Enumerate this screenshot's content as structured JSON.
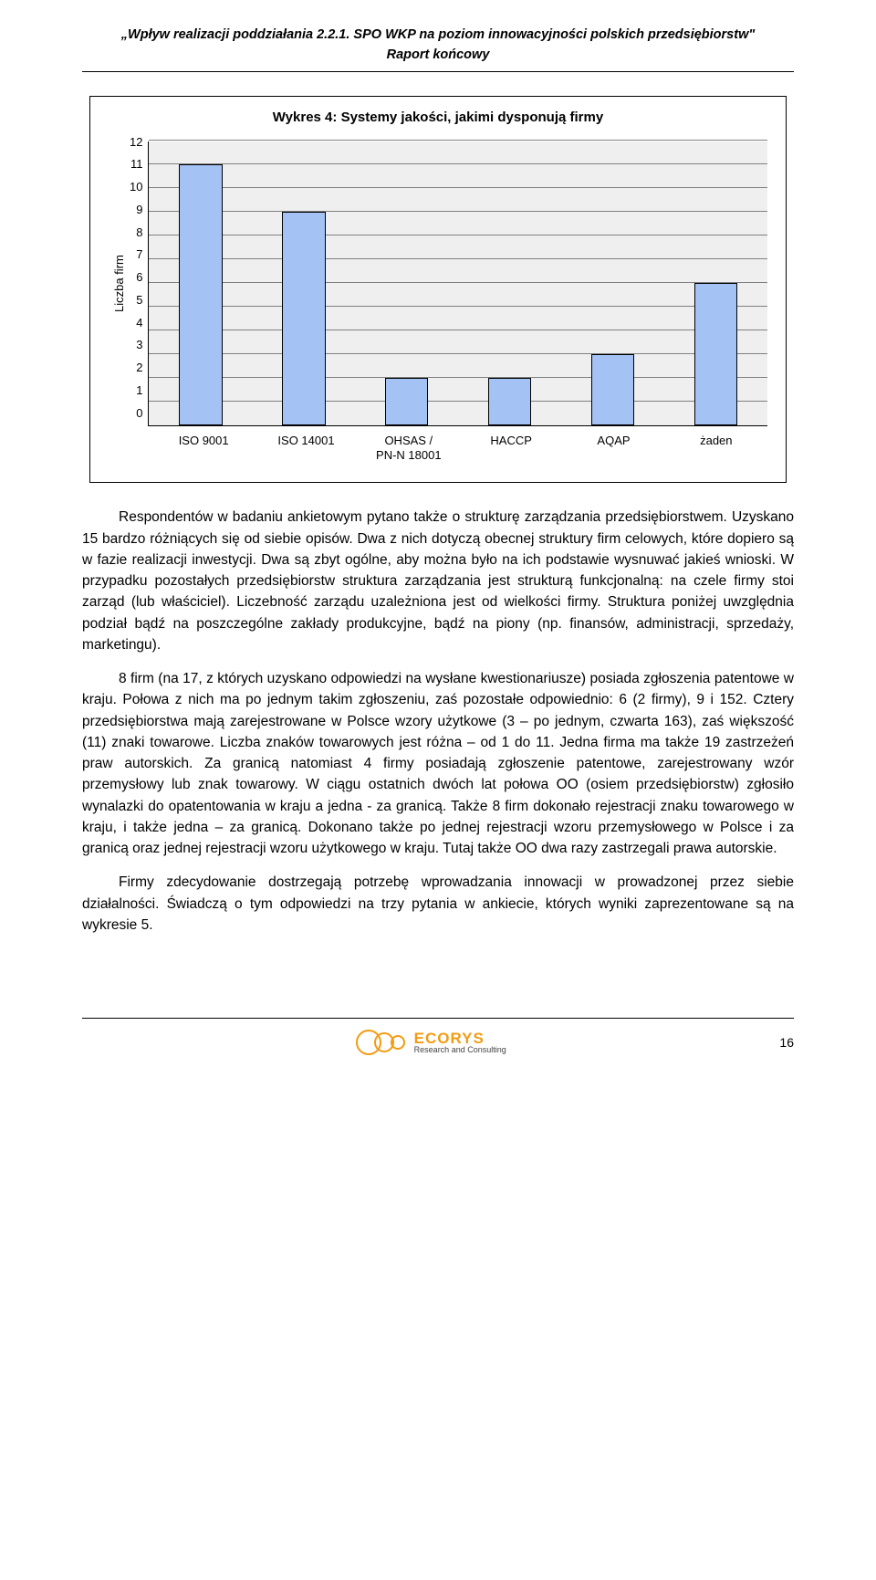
{
  "header": {
    "line1": "„Wpływ realizacji poddziałania 2.2.1. SPO WKP na poziom innowacyjności polskich przedsiębiorstw\"",
    "line2": "Raport końcowy"
  },
  "chart": {
    "title": "Wykres 4: Systemy jakości, jakimi dysponują firmy",
    "yLabel": "Liczba firm",
    "ylim": [
      0,
      12
    ],
    "ytick_step": 1,
    "categories": [
      "ISO 9001",
      "ISO 14001",
      "OHSAS /\nPN-N 18001",
      "HACCP",
      "AQAP",
      "żaden"
    ],
    "values": [
      11,
      9,
      2,
      2,
      3,
      6
    ],
    "bar_fill": "#a4c2f4",
    "bar_border": "#000000",
    "bar_width": 0.42,
    "grid_color": "#808080",
    "plot_bg": "#efefef",
    "axis_fontsize": 13,
    "title_fontsize": 15
  },
  "paragraphs": [
    "Respondentów w badaniu ankietowym pytano także o strukturę zarządzania przedsiębiorstwem. Uzyskano 15 bardzo różniących się od siebie opisów. Dwa z nich dotyczą obecnej struktury firm celowych, które dopiero są w fazie realizacji inwestycji. Dwa są zbyt ogólne, aby można było na ich podstawie wysnuwać jakieś wnioski. W przypadku pozostałych przedsiębiorstw struktura zarządzania jest strukturą funkcjonalną: na czele firmy stoi zarząd (lub właściciel). Liczebność zarządu uzależniona jest od wielkości firmy. Struktura poniżej uwzględnia podział bądź na poszczególne zakłady produkcyjne, bądź na piony (np. finansów, administracji, sprzedaży, marketingu).",
    "8 firm (na 17, z których uzyskano odpowiedzi na wysłane kwestionariusze) posiada zgłoszenia patentowe w kraju. Połowa z nich ma po jednym takim zgłoszeniu, zaś pozostałe odpowiednio: 6 (2 firmy), 9 i 152. Cztery przedsiębiorstwa mają zarejestrowane w Polsce wzory użytkowe (3 – po jednym, czwarta 163), zaś większość (11) znaki towarowe. Liczba znaków towarowych jest różna – od 1 do 11. Jedna firma ma także 19 zastrzeżeń praw autorskich. Za granicą natomiast 4 firmy posiadają zgłoszenie patentowe, zarejestrowany wzór przemysłowy lub znak towarowy. W ciągu ostatnich dwóch lat połowa OO (osiem przedsiębiorstw) zgłosiło wynalazki do opatentowania w kraju a jedna - za granicą. Także 8 firm dokonało rejestracji znaku towarowego w kraju, i także jedna – za granicą. Dokonano także po jednej rejestracji wzoru przemysłowego w Polsce i za granicą oraz jednej rejestracji wzoru użytkowego w kraju. Tutaj także OO dwa razy zastrzegali prawa autorskie.",
    "Firmy zdecydowanie dostrzegają potrzebę wprowadzania innowacji w prowadzonej przez siebie działalności. Świadczą o tym odpowiedzi na trzy pytania w ankiecie, których wyniki zaprezentowane są na wykresie 5."
  ],
  "footer": {
    "logo_main": "ECORYS",
    "logo_sub": "Research and Consulting",
    "logo_color": "#f39c12",
    "page": "16"
  }
}
